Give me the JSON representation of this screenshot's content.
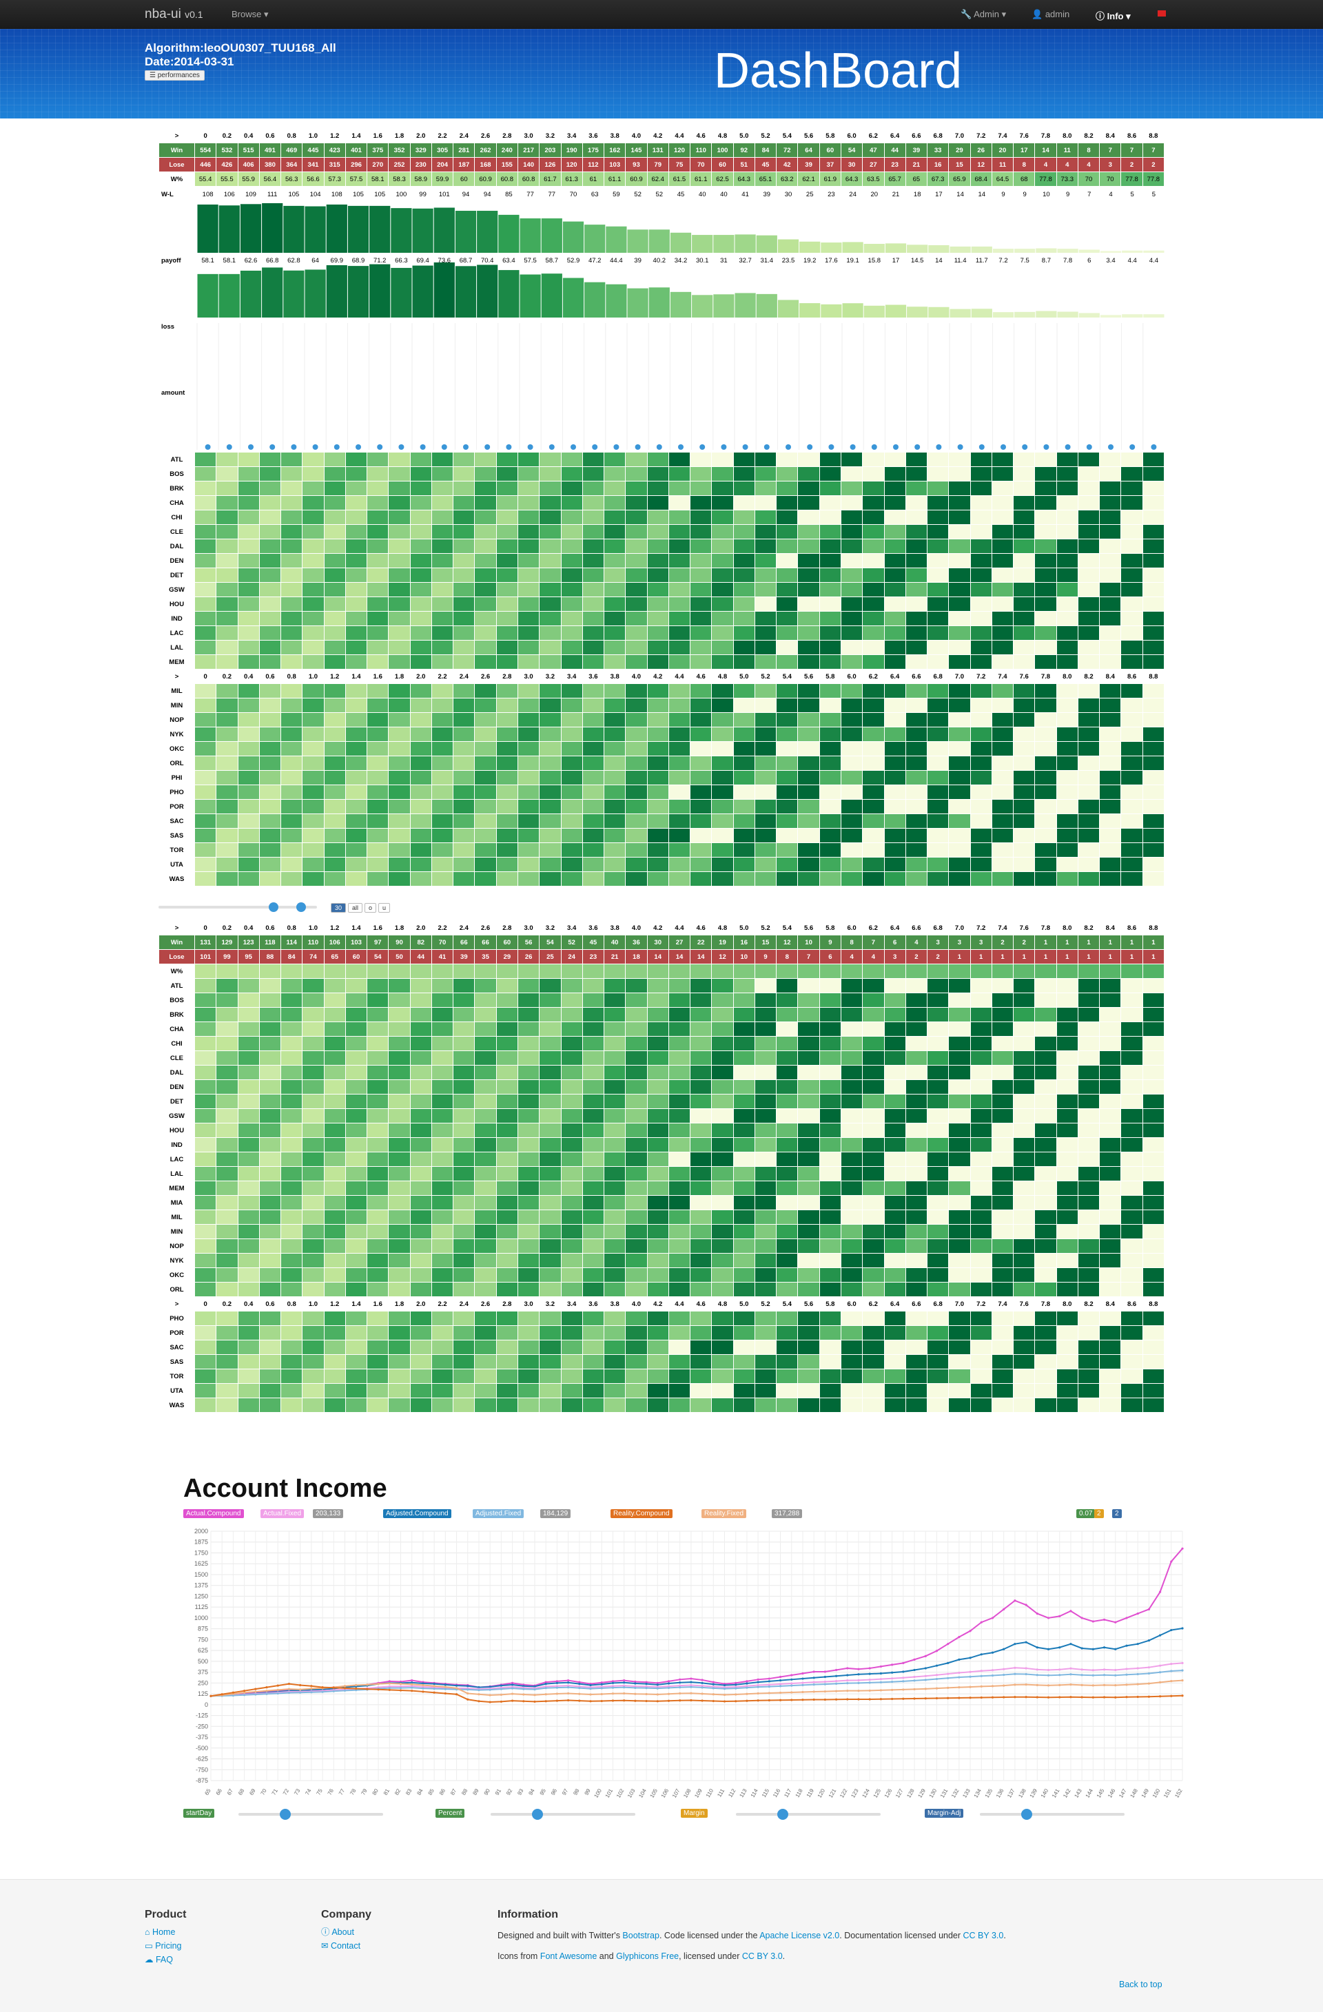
{
  "navbar": {
    "brand": "nba-ui",
    "version": "v0.1",
    "browse": "Browse",
    "admin_menu": "Admin",
    "user": "admin",
    "info": "Info"
  },
  "hero": {
    "algorithm": "Algorithm:leoOU0307_TUU168_All",
    "date": "Date:2014-03-31",
    "perf_button": "performances",
    "title": "DashBoard"
  },
  "colors": {
    "win": "#49924a",
    "loss": "#b54646",
    "heat_low": "#f7fbe0",
    "heat_high": "#17572b"
  },
  "thresholds": [
    "0",
    "0.2",
    "0.4",
    "0.6",
    "0.8",
    "1.0",
    "1.2",
    "1.4",
    "1.6",
    "1.8",
    "2.0",
    "2.2",
    "2.4",
    "2.6",
    "2.8",
    "3.0",
    "3.2",
    "3.4",
    "3.6",
    "3.8",
    "4.0",
    "4.2",
    "4.4",
    "4.6",
    "4.8",
    "5.0",
    "5.2",
    "5.4",
    "5.6",
    "5.8",
    "6.0",
    "6.2",
    "6.4",
    "6.6",
    "6.8",
    "7.0",
    "7.2",
    "7.4",
    "7.6",
    "7.8",
    "8.0",
    "8.2",
    "8.4",
    "8.6",
    "8.8"
  ],
  "table1": {
    "header_label": ">",
    "win_label": "Win",
    "loss_label": "Lose",
    "pct_label": "W%",
    "wl_label": "W-L",
    "payoff_label": "payoff",
    "loss_row_label": "loss",
    "amount_label": "amount",
    "win": [
      "554",
      "532",
      "515",
      "491",
      "469",
      "445",
      "423",
      "401",
      "375",
      "352",
      "329",
      "305",
      "281",
      "262",
      "240",
      "217",
      "203",
      "190",
      "175",
      "162",
      "145",
      "131",
      "120",
      "110",
      "100",
      "92",
      "84",
      "72",
      "64",
      "60",
      "54",
      "47",
      "44",
      "39",
      "33",
      "29",
      "26",
      "20",
      "17",
      "14",
      "11",
      "8",
      "7",
      "7",
      "7"
    ],
    "loss": [
      "446",
      "426",
      "406",
      "380",
      "364",
      "341",
      "315",
      "296",
      "270",
      "252",
      "230",
      "204",
      "187",
      "168",
      "155",
      "140",
      "126",
      "120",
      "112",
      "103",
      "93",
      "79",
      "75",
      "70",
      "60",
      "51",
      "45",
      "42",
      "39",
      "37",
      "30",
      "27",
      "23",
      "21",
      "16",
      "15",
      "12",
      "11",
      "8",
      "4",
      "4",
      "4",
      "3",
      "2",
      "2"
    ],
    "pct": [
      "55.4",
      "55.5",
      "55.9",
      "56.4",
      "56.3",
      "56.6",
      "57.3",
      "57.5",
      "58.1",
      "58.3",
      "58.9",
      "59.9",
      "60",
      "60.9",
      "60.8",
      "60.8",
      "61.7",
      "61.3",
      "61",
      "61.1",
      "60.9",
      "62.4",
      "61.5",
      "61.1",
      "62.5",
      "64.3",
      "65.1",
      "63.2",
      "62.1",
      "61.9",
      "64.3",
      "63.5",
      "65.7",
      "65",
      "67.3",
      "65.9",
      "68.4",
      "64.5",
      "68",
      "77.8",
      "73.3",
      "70",
      "70",
      "77.8",
      "77.8"
    ],
    "wl": [
      "108",
      "106",
      "109",
      "111",
      "105",
      "104",
      "108",
      "105",
      "105",
      "100",
      "99",
      "101",
      "94",
      "94",
      "85",
      "77",
      "77",
      "70",
      "63",
      "59",
      "52",
      "52",
      "45",
      "40",
      "40",
      "41",
      "39",
      "30",
      "25",
      "23",
      "24",
      "20",
      "21",
      "18",
      "17",
      "14",
      "14",
      "9",
      "9",
      "10",
      "9",
      "7",
      "4",
      "5",
      "5"
    ],
    "payoff": [
      "58.1",
      "58.1",
      "62.6",
      "66.8",
      "62.8",
      "64",
      "69.9",
      "68.9",
      "71.2",
      "66.3",
      "69.4",
      "73.6",
      "68.7",
      "70.4",
      "63.4",
      "57.5",
      "58.7",
      "52.9",
      "47.2",
      "44.4",
      "39",
      "40.2",
      "34.2",
      "30.1",
      "31",
      "32.7",
      "31.4",
      "23.5",
      "19.2",
      "17.6",
      "19.1",
      "15.8",
      "17",
      "14.5",
      "14",
      "11.4",
      "11.7",
      "7.2",
      "7.5",
      "8.7",
      "7.8",
      "6",
      "3.4",
      "4.4",
      "4.4"
    ]
  },
  "teams1": [
    "ATL",
    "BOS",
    "BRK",
    "CHA",
    "CHI",
    "CLE",
    "DAL",
    "DEN",
    "DET",
    "GSW",
    "HOU",
    "IND",
    "LAC",
    "LAL",
    "MEM",
    "MIL",
    "MIN",
    "NOP",
    "NYK",
    "OKC",
    "ORL",
    "PHI",
    "PHO",
    "POR",
    "SAC",
    "SAS",
    "TOR",
    "UTA",
    "WAS"
  ],
  "controls": {
    "count": "30",
    "all": "all",
    "o": "o",
    "u": "u"
  },
  "table2": {
    "win": [
      "131",
      "129",
      "123",
      "118",
      "114",
      "110",
      "106",
      "103",
      "97",
      "90",
      "82",
      "70",
      "66",
      "66",
      "60",
      "56",
      "54",
      "52",
      "45",
      "40",
      "36",
      "30",
      "27",
      "22",
      "19",
      "16",
      "15",
      "12",
      "10",
      "9",
      "8",
      "7",
      "6",
      "4",
      "3",
      "3",
      "3",
      "2",
      "2",
      "1",
      "1",
      "1",
      "1",
      "1",
      "1"
    ],
    "loss": [
      "101",
      "99",
      "95",
      "88",
      "84",
      "74",
      "65",
      "60",
      "54",
      "50",
      "44",
      "41",
      "39",
      "35",
      "29",
      "26",
      "25",
      "24",
      "23",
      "21",
      "18",
      "14",
      "14",
      "14",
      "12",
      "10",
      "9",
      "8",
      "7",
      "6",
      "4",
      "4",
      "3",
      "2",
      "2",
      "1",
      "1",
      "1",
      "1",
      "1",
      "1",
      "1",
      "1",
      "1",
      "1"
    ]
  },
  "teams2": [
    "ATL",
    "BOS",
    "BRK",
    "CHA",
    "CHI",
    "CLE",
    "DAL",
    "DEN",
    "DET",
    "GSW",
    "HOU",
    "IND",
    "LAC",
    "LAL",
    "MEM",
    "MIA",
    "MIL",
    "MIN",
    "NOP",
    "NYK",
    "OKC",
    "ORL"
  ],
  "teams2b": [
    "PHO",
    "POR",
    "SAC",
    "SAS",
    "TOR",
    "UTA",
    "WAS"
  ],
  "income": {
    "title": "Account Income",
    "legend": [
      {
        "label": "Actual.Compound",
        "color": "#e050d0"
      },
      {
        "label": "Actual.Fixed",
        "color": "#f0a0e8"
      },
      {
        "label": "203,133",
        "color": "#999"
      },
      {
        "label": "Adjusted.Compound",
        "color": "#1a7ab8"
      },
      {
        "label": "Adjusted.Fixed",
        "color": "#80b8e0"
      },
      {
        "label": "184,129",
        "color": "#999"
      },
      {
        "label": "Reality.Compound",
        "color": "#e07020"
      },
      {
        "label": "Reality.Fixed",
        "color": "#f0b080"
      },
      {
        "label": "317,288",
        "color": "#999"
      }
    ],
    "badges": [
      "0.07",
      "2",
      "2"
    ],
    "y_ticks": [
      "2000",
      "1875",
      "1750",
      "1625",
      "1500",
      "1375",
      "1250",
      "1125",
      "1000",
      "875",
      "750",
      "625",
      "500",
      "375",
      "250",
      "125",
      "0",
      "-125",
      "-250",
      "-375",
      "-500",
      "-625",
      "-750",
      "-875"
    ],
    "sliders": [
      "startDay",
      "Percent",
      "Margin",
      "Margin-Adj"
    ]
  },
  "chart_data": {
    "type": "line",
    "ylim": [
      -875,
      2000
    ],
    "x": [
      "65",
      "66",
      "67",
      "68",
      "69",
      "70",
      "71",
      "72",
      "73",
      "74",
      "75",
      "76",
      "77",
      "78",
      "79",
      "80",
      "81",
      "82",
      "83",
      "84",
      "85",
      "86",
      "87",
      "88",
      "89",
      "90",
      "91",
      "92",
      "93",
      "94",
      "95",
      "96",
      "97",
      "98",
      "99",
      "100",
      "101",
      "102",
      "103",
      "104",
      "105",
      "106",
      "107",
      "108",
      "109",
      "110",
      "111",
      "112",
      "113",
      "114",
      "115",
      "116",
      "117",
      "118",
      "119",
      "120",
      "121",
      "122",
      "123",
      "124",
      "125",
      "126",
      "127",
      "128",
      "129",
      "130",
      "131",
      "132",
      "133",
      "134",
      "135",
      "136",
      "137",
      "138",
      "139",
      "140",
      "141",
      "142",
      "143",
      "144",
      "145",
      "146",
      "147",
      "148",
      "149",
      "150",
      "151",
      "152"
    ],
    "series": [
      {
        "name": "Actual.Compound",
        "color": "#e050d0",
        "values": [
          100,
          110,
          120,
          130,
          140,
          150,
          160,
          175,
          170,
          180,
          185,
          200,
          210,
          220,
          230,
          250,
          270,
          265,
          280,
          260,
          250,
          240,
          230,
          225,
          200,
          210,
          230,
          250,
          230,
          220,
          260,
          270,
          280,
          260,
          240,
          255,
          270,
          280,
          265,
          260,
          250,
          270,
          290,
          300,
          285,
          260,
          240,
          250,
          270,
          290,
          300,
          320,
          340,
          360,
          380,
          380,
          400,
          420,
          410,
          420,
          440,
          460,
          480,
          520,
          560,
          620,
          700,
          780,
          850,
          950,
          1000,
          1100,
          1200,
          1150,
          1050,
          1000,
          1020,
          1080,
          1000,
          960,
          980,
          950,
          1000,
          1050,
          1100,
          1300,
          1650,
          1800
        ]
      },
      {
        "name": "Adjusted.Compound",
        "color": "#1a7ab8",
        "values": [
          100,
          105,
          110,
          120,
          130,
          140,
          150,
          160,
          165,
          170,
          175,
          185,
          200,
          210,
          220,
          240,
          250,
          250,
          255,
          245,
          240,
          230,
          220,
          215,
          200,
          205,
          220,
          230,
          215,
          210,
          240,
          250,
          255,
          240,
          225,
          235,
          250,
          255,
          245,
          240,
          230,
          245,
          255,
          260,
          250,
          235,
          225,
          230,
          245,
          260,
          270,
          280,
          290,
          300,
          310,
          320,
          330,
          340,
          350,
          355,
          360,
          370,
          380,
          400,
          420,
          450,
          480,
          520,
          540,
          580,
          600,
          640,
          700,
          720,
          660,
          640,
          660,
          700,
          650,
          640,
          660,
          640,
          680,
          700,
          740,
          800,
          860,
          880
        ]
      },
      {
        "name": "Actual.Fixed",
        "color": "#f0a0e8",
        "values": [
          100,
          105,
          110,
          118,
          125,
          132,
          140,
          150,
          150,
          155,
          160,
          168,
          175,
          182,
          188,
          200,
          210,
          210,
          215,
          205,
          200,
          195,
          190,
          188,
          180,
          185,
          195,
          205,
          195,
          190,
          210,
          215,
          220,
          210,
          200,
          208,
          215,
          220,
          212,
          210,
          205,
          212,
          220,
          225,
          218,
          208,
          200,
          205,
          215,
          225,
          230,
          238,
          245,
          252,
          260,
          265,
          272,
          280,
          282,
          288,
          295,
          302,
          310,
          320,
          330,
          342,
          355,
          368,
          378,
          390,
          398,
          410,
          425,
          420,
          405,
          400,
          405,
          418,
          405,
          398,
          405,
          400,
          412,
          420,
          430,
          450,
          470,
          480
        ]
      },
      {
        "name": "Adjusted.Fixed",
        "color": "#80b8e0",
        "values": [
          100,
          102,
          106,
          112,
          118,
          124,
          130,
          138,
          140,
          144,
          148,
          155,
          162,
          168,
          174,
          185,
          192,
          192,
          196,
          188,
          184,
          180,
          176,
          174,
          168,
          172,
          180,
          188,
          180,
          176,
          192,
          196,
          200,
          192,
          184,
          190,
          196,
          200,
          194,
          192,
          188,
          194,
          200,
          204,
          198,
          190,
          184,
          188,
          196,
          204,
          208,
          214,
          220,
          226,
          232,
          236,
          242,
          248,
          250,
          254,
          258,
          264,
          270,
          278,
          286,
          296,
          306,
          316,
          322,
          330,
          336,
          344,
          354,
          352,
          342,
          338,
          342,
          350,
          342,
          338,
          342,
          338,
          346,
          352,
          360,
          374,
          388,
          395
        ]
      },
      {
        "name": "Reality.Fixed",
        "color": "#f0b080",
        "values": [
          100,
          110,
          125,
          140,
          150,
          160,
          170,
          180,
          175,
          185,
          190,
          200,
          215,
          225,
          230,
          240,
          245,
          240,
          235,
          225,
          215,
          205,
          190,
          130,
          120,
          110,
          115,
          125,
          118,
          112,
          120,
          126,
          130,
          124,
          118,
          122,
          128,
          130,
          124,
          122,
          118,
          124,
          130,
          132,
          126,
          120,
          114,
          118,
          124,
          130,
          134,
          138,
          142,
          146,
          150,
          152,
          156,
          160,
          160,
          162,
          166,
          170,
          174,
          178,
          182,
          188,
          194,
          200,
          204,
          210,
          214,
          220,
          230,
          232,
          226,
          222,
          226,
          232,
          226,
          222,
          226,
          224,
          230,
          236,
          244,
          258,
          272,
          280
        ]
      },
      {
        "name": "Reality.Compound",
        "color": "#e07020",
        "values": [
          100,
          120,
          140,
          160,
          180,
          200,
          220,
          240,
          225,
          215,
          200,
          195,
          190,
          185,
          180,
          175,
          170,
          165,
          160,
          150,
          140,
          130,
          120,
          60,
          40,
          30,
          35,
          45,
          40,
          35,
          40,
          45,
          50,
          45,
          40,
          42,
          46,
          48,
          44,
          42,
          40,
          44,
          48,
          50,
          46,
          42,
          38,
          40,
          44,
          48,
          50,
          52,
          54,
          56,
          58,
          58,
          60,
          62,
          62,
          62,
          64,
          66,
          68,
          70,
          72,
          74,
          76,
          78,
          80,
          82,
          84,
          86,
          88,
          88,
          86,
          84,
          86,
          88,
          86,
          84,
          86,
          84,
          88,
          90,
          92,
          96,
          100,
          104
        ]
      }
    ]
  },
  "footer": {
    "product": {
      "title": "Product",
      "links": [
        "Home",
        "Pricing",
        "FAQ"
      ]
    },
    "company": {
      "title": "Company",
      "links": [
        "About",
        "Contact"
      ]
    },
    "info": {
      "title": "Information",
      "line1_pre": "Designed and built with Twitter's ",
      "bootstrap": "Bootstrap",
      "line1_mid": ". Code licensed under the ",
      "apache": "Apache License v2.0",
      "line1_mid2": ". Documentation licensed under ",
      "ccby": "CC BY 3.0",
      "line1_end": ".",
      "line2_pre": "Icons from ",
      "fa": "Font Awesome",
      "and": " and ",
      "glyph": "Glyphicons Free",
      "line2_mid": ", licensed under ",
      "ccby2": "CC BY 3.0",
      "line2_end": "."
    },
    "back_to_top": "Back to top"
  }
}
